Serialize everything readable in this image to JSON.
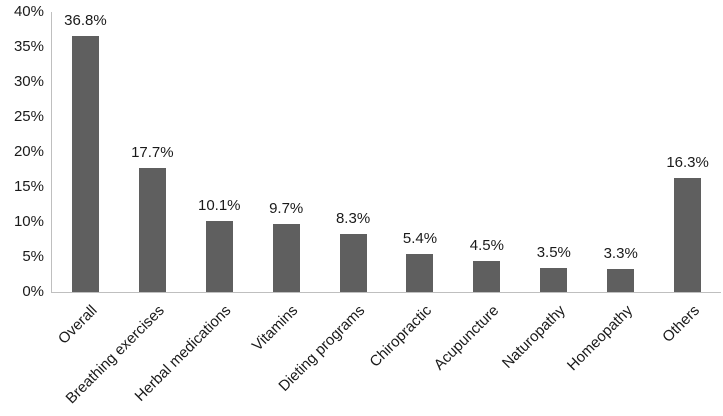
{
  "chart_data": {
    "type": "bar",
    "title": "",
    "xlabel": "",
    "ylabel": "",
    "categories": [
      "Overall",
      "Breathing exercises",
      "Herbal medications",
      "Vitamins",
      "Dieting programs",
      "Chiropractic",
      "Acupuncture",
      "Naturopathy",
      "Homeopathy",
      "Others"
    ],
    "values": [
      36.8,
      17.7,
      10.1,
      9.7,
      8.3,
      5.4,
      4.5,
      3.5,
      3.3,
      16.3
    ],
    "data_labels": [
      "36.8%",
      "17.7%",
      "10.1%",
      "9.7%",
      "8.3%",
      "5.4%",
      "4.5%",
      "3.5%",
      "3.3%",
      "16.3%"
    ],
    "y_ticks": [
      "0%",
      "5%",
      "10%",
      "15%",
      "20%",
      "25%",
      "30%",
      "35%",
      "40%"
    ],
    "ylim": [
      0,
      40
    ],
    "grid": false,
    "legend": "none",
    "bar_color": "#5f5f5f",
    "axis_line_color": "#bfbfbf",
    "text_color": "#1a1a1a",
    "background_color": "#ffffff"
  }
}
